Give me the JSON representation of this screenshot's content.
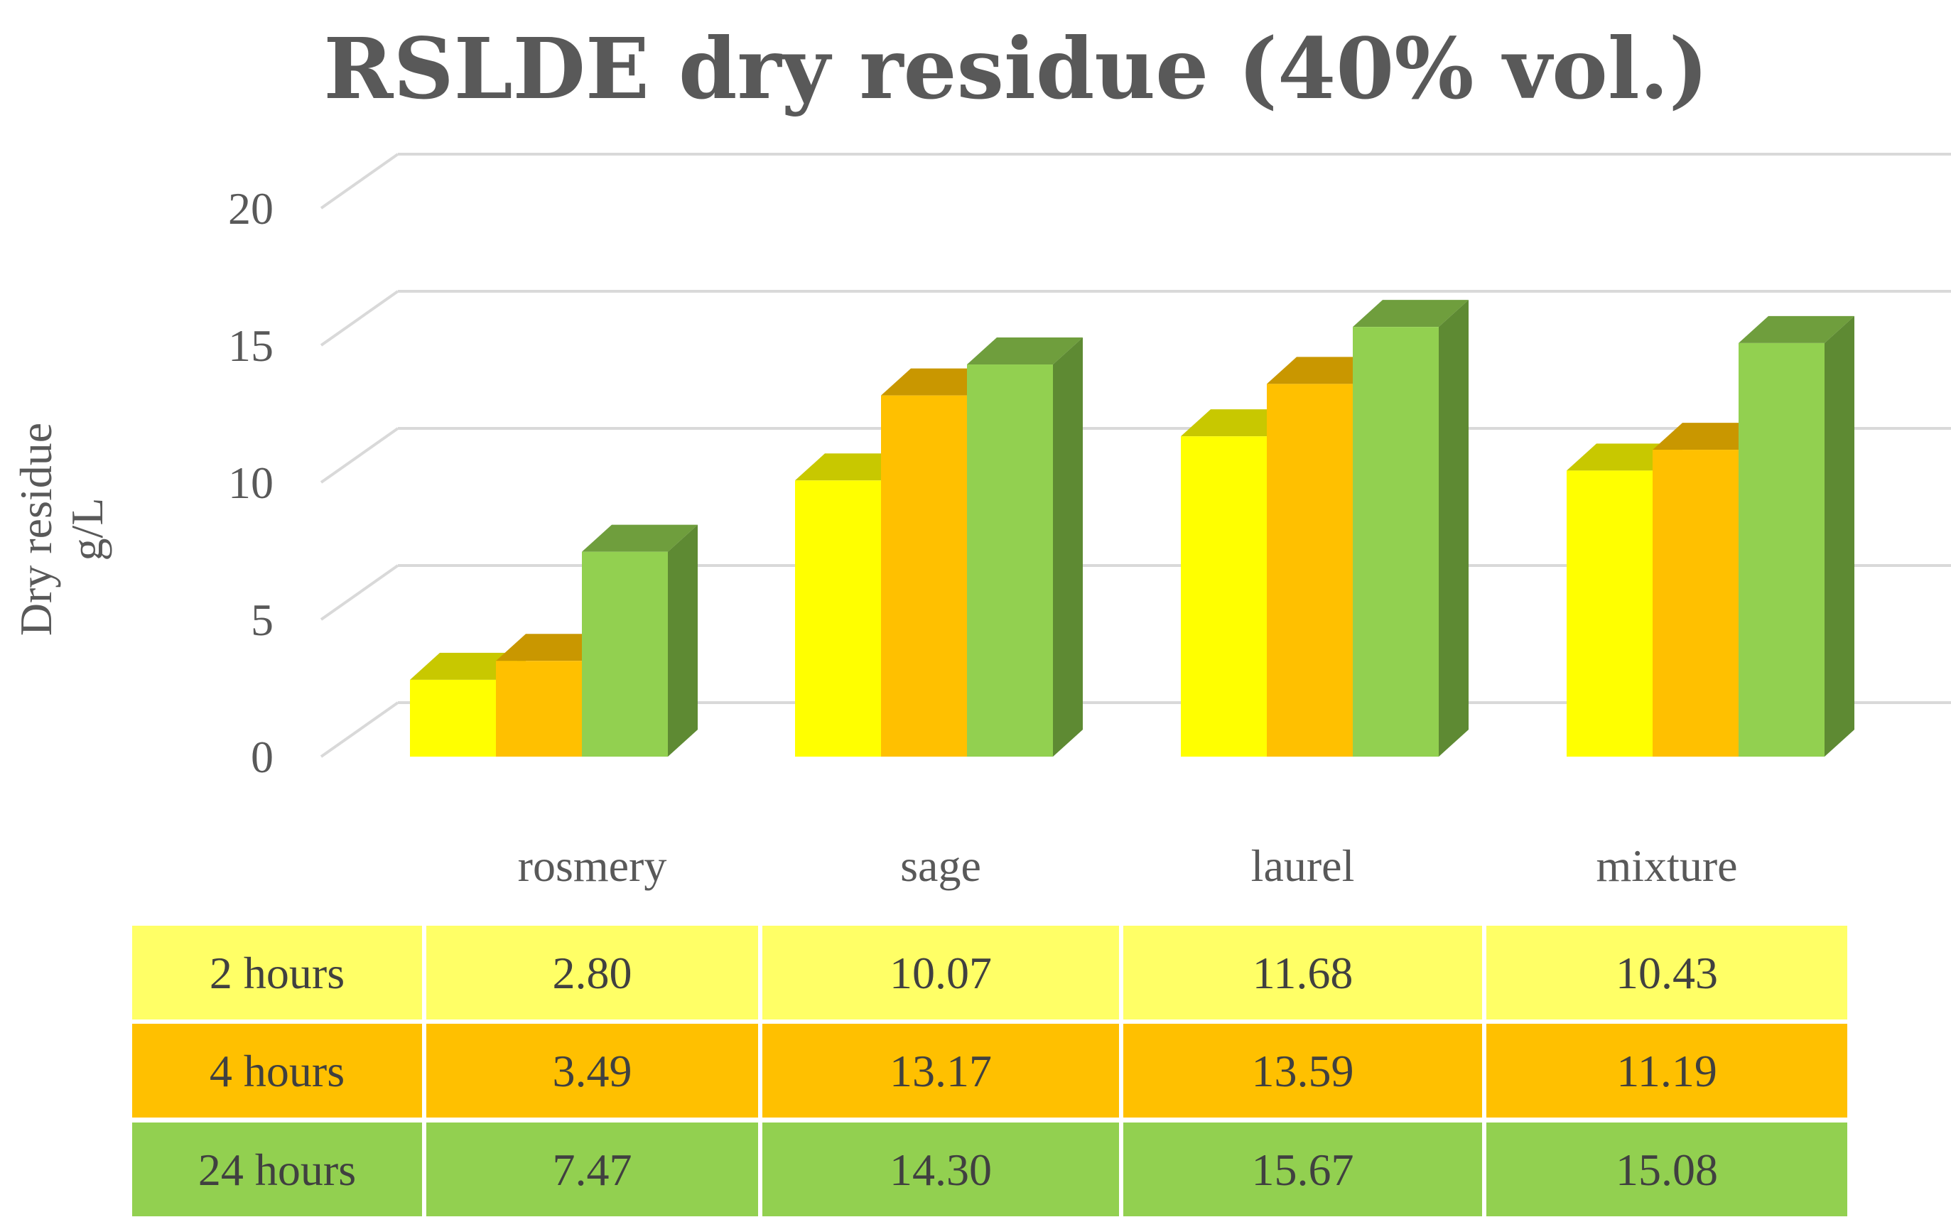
{
  "chart_data": {
    "type": "bar",
    "title": "RSLDE dry residue (40% vol.)",
    "ylabel": [
      "Dry residue",
      "g/L"
    ],
    "xlabel": "",
    "ylim": [
      0,
      20
    ],
    "yticks": [
      0,
      5,
      10,
      15,
      20
    ],
    "categories": [
      "rosmery",
      "sage",
      "laurel",
      "mixture"
    ],
    "series": [
      {
        "name": "2 hours",
        "values": [
          2.8,
          10.07,
          11.68,
          10.43
        ],
        "labels": [
          "2.80",
          "10.07",
          "11.68",
          "10.43"
        ]
      },
      {
        "name": "4 hours",
        "values": [
          3.49,
          13.17,
          13.59,
          11.19
        ],
        "labels": [
          "3.49",
          "13.17",
          "13.59",
          "11.19"
        ]
      },
      {
        "name": "24 hours",
        "values": [
          7.47,
          14.3,
          15.67,
          15.08
        ],
        "labels": [
          "7.47",
          "14.30",
          "15.67",
          "15.08"
        ]
      }
    ]
  },
  "colors": {
    "series": [
      {
        "front": "#ffff00",
        "top": "#c8c800",
        "side": "#a9a900",
        "cell": "#ffff66"
      },
      {
        "front": "#ffc000",
        "top": "#c99700",
        "side": "#b08400",
        "cell": "#ffc000"
      },
      {
        "front": "#92d050",
        "top": "#6f9e3d",
        "side": "#5e8a33",
        "cell": "#92d050"
      }
    ],
    "grid": "#d9d9d9",
    "text": "#595959"
  }
}
